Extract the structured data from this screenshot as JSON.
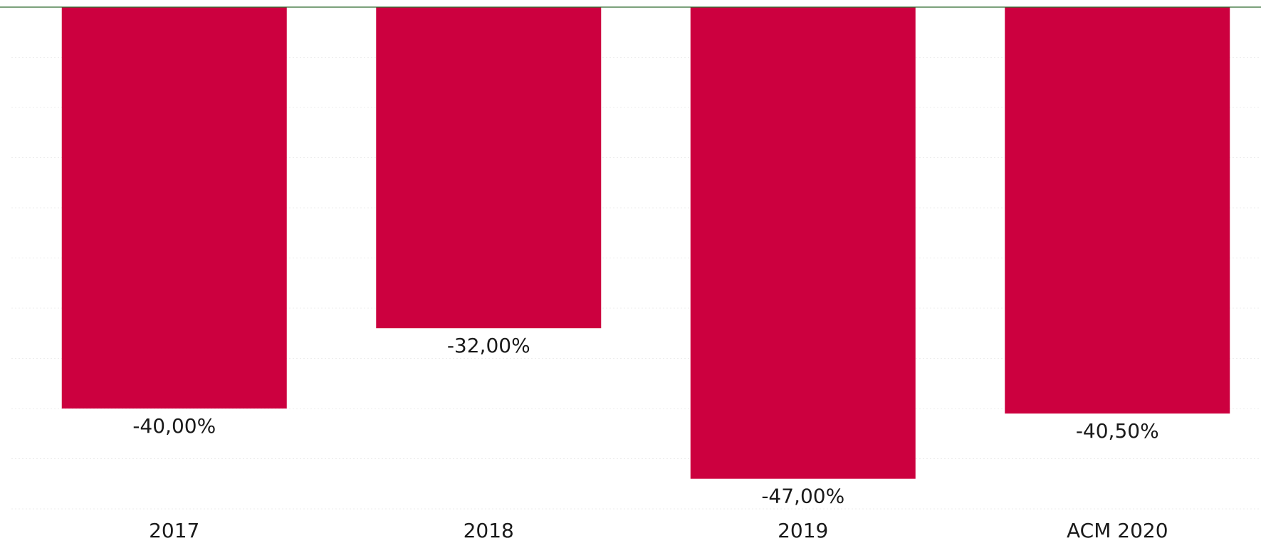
{
  "chart_data": {
    "type": "bar",
    "title": "",
    "xlabel": "",
    "ylabel": "",
    "categories": [
      "2017",
      "2018",
      "2019",
      "ACM 2020"
    ],
    "values": [
      -40.0,
      -32.0,
      -47.0,
      -40.5
    ],
    "data_labels": [
      "-40,00%",
      "-32,00%",
      "-47,00%",
      "-40,50%"
    ],
    "ylim": [
      -50,
      0
    ],
    "unit": "%",
    "grid": true,
    "legend": "none",
    "bar_color": "#cc003f",
    "baseline_color": "#2e6b2e"
  }
}
